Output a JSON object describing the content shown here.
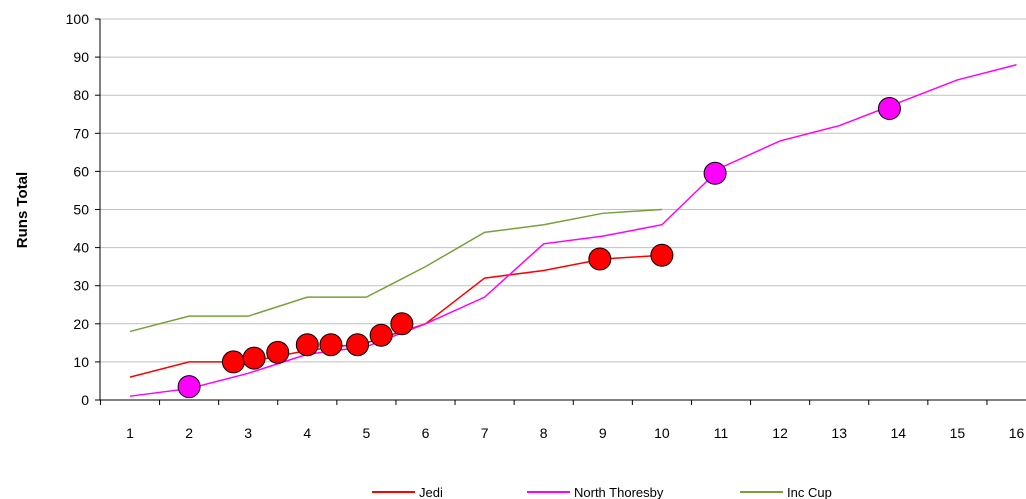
{
  "chart_data": {
    "type": "line",
    "title": "",
    "xlabel": "",
    "ylabel": "Runs Total",
    "ylim": [
      0,
      100
    ],
    "yticks": [
      0,
      10,
      20,
      30,
      40,
      50,
      60,
      70,
      80,
      90,
      100
    ],
    "xticks": [
      1,
      2,
      3,
      4,
      5,
      6,
      7,
      8,
      9,
      10,
      11,
      12,
      13,
      14,
      15,
      16
    ],
    "grid": true,
    "legend": "bottom",
    "colors": {
      "Jedi": "#ff0000",
      "North Thoresby": "#ff00ff",
      "Inc Cup": "#77a03a"
    },
    "series": [
      {
        "name": "Jedi",
        "x": [
          1,
          2,
          3,
          4,
          5,
          6,
          7,
          8,
          9,
          10
        ],
        "values": [
          6,
          10,
          10,
          13,
          15,
          20,
          32,
          34,
          37,
          38
        ],
        "markers": [
          {
            "x": 2.75,
            "y": 10
          },
          {
            "x": 3.1,
            "y": 11
          },
          {
            "x": 3.5,
            "y": 12.5
          },
          {
            "x": 4.0,
            "y": 14.5
          },
          {
            "x": 4.4,
            "y": 14.5
          },
          {
            "x": 4.85,
            "y": 14.5
          },
          {
            "x": 5.25,
            "y": 17
          },
          {
            "x": 5.6,
            "y": 20
          },
          {
            "x": 8.95,
            "y": 37
          },
          {
            "x": 10.0,
            "y": 38
          }
        ]
      },
      {
        "name": "North Thoresby",
        "x": [
          1,
          2,
          3,
          4,
          5,
          6,
          7,
          8,
          9,
          10,
          11,
          12,
          13,
          14,
          15,
          16
        ],
        "values": [
          1,
          3,
          7,
          12,
          14,
          20,
          27,
          41,
          43,
          46,
          61,
          68,
          72,
          78,
          84,
          88
        ],
        "markers": [
          {
            "x": 2.0,
            "y": 3.5
          },
          {
            "x": 10.9,
            "y": 59.5
          },
          {
            "x": 13.85,
            "y": 76.5
          }
        ]
      },
      {
        "name": "Inc Cup",
        "x": [
          1,
          2,
          3,
          4,
          5,
          6,
          7,
          8,
          9,
          10
        ],
        "values": [
          18,
          22,
          22,
          27,
          27,
          35,
          44,
          46,
          49,
          50
        ],
        "markers": []
      }
    ]
  }
}
